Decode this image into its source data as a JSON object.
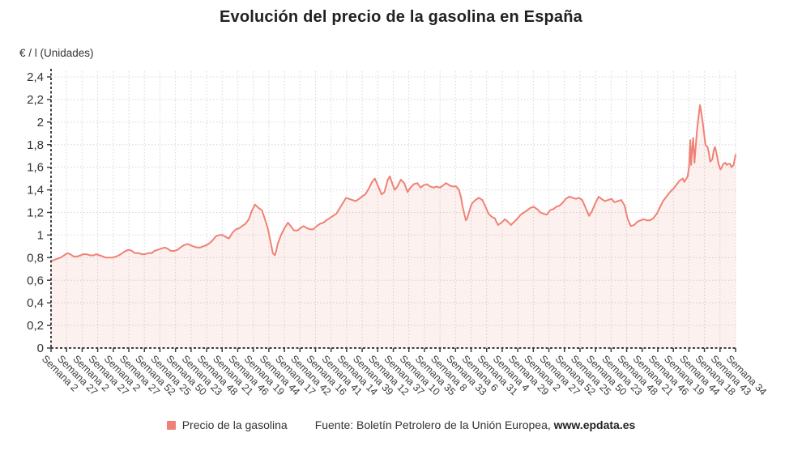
{
  "title": "Evolución del precio de la gasolina en España",
  "y_axis_title": "€ / l (Unidades)",
  "legend": {
    "label": "Precio de la gasolina"
  },
  "source": {
    "prefix": "Fuente: Boletín Petrolero de la Unión Europea, ",
    "site": "www.epdata.es"
  },
  "colors": {
    "line": "#ef8276",
    "fill": "rgba(240,138,125,0.12)",
    "grid": "#d6d6d6",
    "axis": "#3f3f3f",
    "text": "#333333",
    "title": "#212121"
  },
  "chart_data": {
    "type": "area",
    "title": "Evolución del precio de la gasolina en España",
    "series_name": "Precio de la gasolina",
    "ylabel": "€ / l (Unidades)",
    "ylim": [
      0,
      2.4
    ],
    "grid": true,
    "legend_position": "bottom",
    "y_tick_labels": [
      "0",
      "0,2",
      "0,4",
      "0,6",
      "0,8",
      "1",
      "1,2",
      "1,4",
      "1,6",
      "1,8",
      "2",
      "2,2",
      "2,4"
    ],
    "x_tick_labels": [
      "Semana 2",
      "Semana 27",
      "Semana 2",
      "Semana 27",
      "Semana 2",
      "Semana 27",
      "Semana 52",
      "Semana 25",
      "Semana 50",
      "Semana 23",
      "Semana 48",
      "Semana 21",
      "Semana 46",
      "Semana 19",
      "Semana 44",
      "Semana 17",
      "Semana 42",
      "Semana 16",
      "Semana 41",
      "Semana 14",
      "Semana 39",
      "Semana 12",
      "Semana 37",
      "Semana 10",
      "Semana 35",
      "Semana 8",
      "Semana 33",
      "Semana 6",
      "Semana 31",
      "Semana 4",
      "Semana 29",
      "Semana 2",
      "Semana 27",
      "Semana 52",
      "Semana 25",
      "Semana 50",
      "Semana 23",
      "Semana 48",
      "Semana 21",
      "Semana 46",
      "Semana 19",
      "Semana 44",
      "Semana 18",
      "Semana 43",
      "Semana 34"
    ],
    "points_format": "[position 0-1000 along time axis, price in €/l]",
    "points": [
      [
        0,
        0.77
      ],
      [
        5,
        0.78
      ],
      [
        9,
        0.79
      ],
      [
        14,
        0.8
      ],
      [
        19,
        0.82
      ],
      [
        24,
        0.84
      ],
      [
        28,
        0.83
      ],
      [
        33,
        0.81
      ],
      [
        38,
        0.81
      ],
      [
        43,
        0.82
      ],
      [
        47,
        0.83
      ],
      [
        52,
        0.83
      ],
      [
        57,
        0.82
      ],
      [
        62,
        0.82
      ],
      [
        66,
        0.83
      ],
      [
        71,
        0.82
      ],
      [
        76,
        0.81
      ],
      [
        80,
        0.8
      ],
      [
        85,
        0.8
      ],
      [
        90,
        0.8
      ],
      [
        95,
        0.81
      ],
      [
        99,
        0.82
      ],
      [
        104,
        0.84
      ],
      [
        109,
        0.86
      ],
      [
        114,
        0.87
      ],
      [
        118,
        0.86
      ],
      [
        123,
        0.84
      ],
      [
        128,
        0.84
      ],
      [
        133,
        0.83
      ],
      [
        137,
        0.83
      ],
      [
        142,
        0.84
      ],
      [
        147,
        0.84
      ],
      [
        151,
        0.86
      ],
      [
        156,
        0.87
      ],
      [
        161,
        0.88
      ],
      [
        166,
        0.89
      ],
      [
        170,
        0.88
      ],
      [
        175,
        0.86
      ],
      [
        180,
        0.86
      ],
      [
        185,
        0.87
      ],
      [
        189,
        0.89
      ],
      [
        194,
        0.91
      ],
      [
        199,
        0.92
      ],
      [
        204,
        0.91
      ],
      [
        208,
        0.9
      ],
      [
        213,
        0.89
      ],
      [
        218,
        0.89
      ],
      [
        222,
        0.9
      ],
      [
        227,
        0.91
      ],
      [
        232,
        0.93
      ],
      [
        237,
        0.96
      ],
      [
        241,
        0.99
      ],
      [
        246,
        1.0
      ],
      [
        251,
        1.0
      ],
      [
        256,
        0.98
      ],
      [
        260,
        0.97
      ],
      [
        265,
        1.02
      ],
      [
        270,
        1.05
      ],
      [
        275,
        1.06
      ],
      [
        279,
        1.08
      ],
      [
        284,
        1.1
      ],
      [
        289,
        1.14
      ],
      [
        293,
        1.21
      ],
      [
        298,
        1.27
      ],
      [
        303,
        1.24
      ],
      [
        308,
        1.22
      ],
      [
        312,
        1.15
      ],
      [
        317,
        1.05
      ],
      [
        322,
        0.9
      ],
      [
        324,
        0.84
      ],
      [
        327,
        0.82
      ],
      [
        329,
        0.86
      ],
      [
        331,
        0.92
      ],
      [
        336,
        1.0
      ],
      [
        341,
        1.06
      ],
      [
        346,
        1.11
      ],
      [
        350,
        1.08
      ],
      [
        355,
        1.04
      ],
      [
        360,
        1.04
      ],
      [
        364,
        1.06
      ],
      [
        369,
        1.08
      ],
      [
        374,
        1.06
      ],
      [
        379,
        1.05
      ],
      [
        383,
        1.05
      ],
      [
        388,
        1.08
      ],
      [
        393,
        1.1
      ],
      [
        398,
        1.11
      ],
      [
        402,
        1.13
      ],
      [
        407,
        1.15
      ],
      [
        412,
        1.17
      ],
      [
        417,
        1.19
      ],
      [
        421,
        1.23
      ],
      [
        426,
        1.28
      ],
      [
        431,
        1.33
      ],
      [
        435,
        1.32
      ],
      [
        440,
        1.31
      ],
      [
        445,
        1.3
      ],
      [
        450,
        1.32
      ],
      [
        454,
        1.34
      ],
      [
        459,
        1.36
      ],
      [
        464,
        1.41
      ],
      [
        469,
        1.47
      ],
      [
        473,
        1.5
      ],
      [
        478,
        1.43
      ],
      [
        483,
        1.36
      ],
      [
        487,
        1.38
      ],
      [
        492,
        1.49
      ],
      [
        495,
        1.52
      ],
      [
        497,
        1.48
      ],
      [
        502,
        1.4
      ],
      [
        506,
        1.43
      ],
      [
        511,
        1.49
      ],
      [
        516,
        1.46
      ],
      [
        521,
        1.38
      ],
      [
        525,
        1.42
      ],
      [
        530,
        1.45
      ],
      [
        535,
        1.46
      ],
      [
        540,
        1.42
      ],
      [
        544,
        1.44
      ],
      [
        549,
        1.45
      ],
      [
        554,
        1.43
      ],
      [
        559,
        1.42
      ],
      [
        563,
        1.43
      ],
      [
        568,
        1.42
      ],
      [
        573,
        1.44
      ],
      [
        577,
        1.46
      ],
      [
        582,
        1.44
      ],
      [
        587,
        1.43
      ],
      [
        592,
        1.43
      ],
      [
        596,
        1.4
      ],
      [
        599,
        1.33
      ],
      [
        601,
        1.26
      ],
      [
        604,
        1.18
      ],
      [
        606,
        1.13
      ],
      [
        608,
        1.15
      ],
      [
        611,
        1.21
      ],
      [
        613,
        1.25
      ],
      [
        615,
        1.28
      ],
      [
        620,
        1.31
      ],
      [
        625,
        1.33
      ],
      [
        630,
        1.31
      ],
      [
        634,
        1.26
      ],
      [
        639,
        1.19
      ],
      [
        644,
        1.16
      ],
      [
        648,
        1.15
      ],
      [
        653,
        1.09
      ],
      [
        658,
        1.11
      ],
      [
        663,
        1.14
      ],
      [
        667,
        1.12
      ],
      [
        672,
        1.09
      ],
      [
        677,
        1.12
      ],
      [
        682,
        1.15
      ],
      [
        686,
        1.18
      ],
      [
        691,
        1.2
      ],
      [
        696,
        1.22
      ],
      [
        700,
        1.24
      ],
      [
        705,
        1.25
      ],
      [
        710,
        1.23
      ],
      [
        715,
        1.2
      ],
      [
        719,
        1.19
      ],
      [
        724,
        1.18
      ],
      [
        729,
        1.22
      ],
      [
        734,
        1.23
      ],
      [
        738,
        1.25
      ],
      [
        743,
        1.26
      ],
      [
        748,
        1.29
      ],
      [
        752,
        1.32
      ],
      [
        757,
        1.34
      ],
      [
        762,
        1.33
      ],
      [
        767,
        1.32
      ],
      [
        771,
        1.33
      ],
      [
        776,
        1.31
      ],
      [
        781,
        1.24
      ],
      [
        786,
        1.17
      ],
      [
        790,
        1.21
      ],
      [
        795,
        1.28
      ],
      [
        800,
        1.34
      ],
      [
        804,
        1.32
      ],
      [
        809,
        1.3
      ],
      [
        814,
        1.31
      ],
      [
        819,
        1.32
      ],
      [
        823,
        1.29
      ],
      [
        828,
        1.3
      ],
      [
        833,
        1.31
      ],
      [
        838,
        1.26
      ],
      [
        842,
        1.15
      ],
      [
        847,
        1.08
      ],
      [
        852,
        1.09
      ],
      [
        857,
        1.12
      ],
      [
        861,
        1.13
      ],
      [
        866,
        1.14
      ],
      [
        871,
        1.13
      ],
      [
        875,
        1.13
      ],
      [
        880,
        1.15
      ],
      [
        885,
        1.19
      ],
      [
        890,
        1.25
      ],
      [
        894,
        1.3
      ],
      [
        899,
        1.34
      ],
      [
        904,
        1.38
      ],
      [
        909,
        1.41
      ],
      [
        913,
        1.44
      ],
      [
        918,
        1.48
      ],
      [
        923,
        1.5
      ],
      [
        925,
        1.47
      ],
      [
        928,
        1.5
      ],
      [
        930,
        1.52
      ],
      [
        932,
        1.6
      ],
      [
        934,
        1.84
      ],
      [
        935,
        1.62
      ],
      [
        936,
        1.7
      ],
      [
        938,
        1.86
      ],
      [
        940,
        1.64
      ],
      [
        941,
        1.72
      ],
      [
        942,
        1.8
      ],
      [
        944,
        1.95
      ],
      [
        947,
        2.1
      ],
      [
        948,
        2.15
      ],
      [
        949,
        2.12
      ],
      [
        952,
        2.0
      ],
      [
        954,
        1.9
      ],
      [
        956,
        1.8
      ],
      [
        959,
        1.78
      ],
      [
        961,
        1.73
      ],
      [
        963,
        1.65
      ],
      [
        966,
        1.67
      ],
      [
        968,
        1.75
      ],
      [
        970,
        1.78
      ],
      [
        973,
        1.7
      ],
      [
        975,
        1.63
      ],
      [
        978,
        1.58
      ],
      [
        980,
        1.6
      ],
      [
        982,
        1.63
      ],
      [
        985,
        1.64
      ],
      [
        987,
        1.62
      ],
      [
        989,
        1.63
      ],
      [
        992,
        1.63
      ],
      [
        994,
        1.6
      ],
      [
        997,
        1.62
      ],
      [
        1000,
        1.71
      ]
    ]
  }
}
